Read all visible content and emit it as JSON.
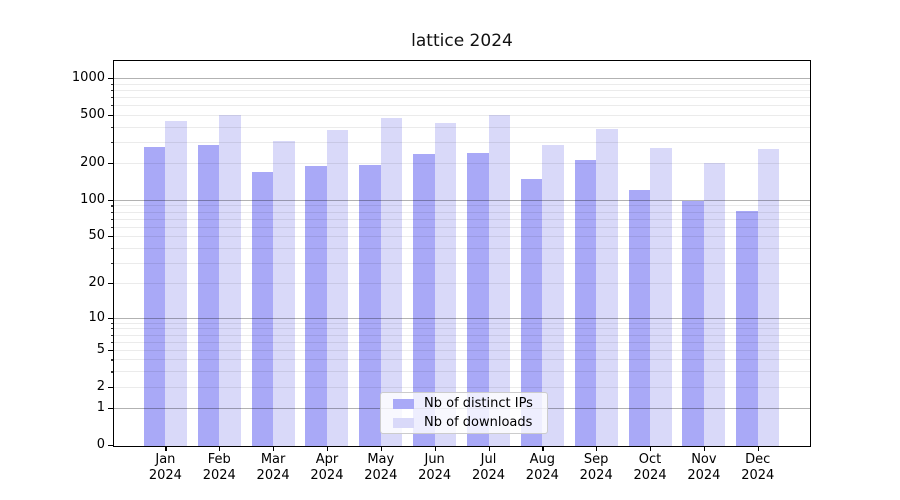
{
  "chart_data": {
    "type": "bar",
    "title": "lattice 2024",
    "x_categories": [
      "Jan",
      "Feb",
      "Mar",
      "Apr",
      "May",
      "Jun",
      "Jul",
      "Aug",
      "Sep",
      "Oct",
      "Nov",
      "Dec"
    ],
    "x_year": "2024",
    "series": [
      {
        "name": "Nb of distinct IPs",
        "color": "#a9a9f7",
        "values": [
          278,
          288,
          172,
          193,
          197,
          243,
          248,
          152,
          216,
          124,
          100,
          83
        ]
      },
      {
        "name": "Nb of downloads",
        "color": "#d9d9f9",
        "values": [
          450,
          505,
          311,
          380,
          480,
          437,
          510,
          288,
          390,
          272,
          203,
          266
        ]
      }
    ],
    "y_axis": {
      "scale": "log1p",
      "ticks": [
        0,
        1,
        2,
        5,
        10,
        20,
        50,
        100,
        200,
        500,
        1000
      ],
      "ylim": [
        0,
        1380
      ]
    },
    "grid": {
      "major_at": [
        1,
        10,
        100,
        1000
      ],
      "major_color": "rgba(0,0,0,0.30)",
      "minor_color": "rgba(0,0,0,0.08)"
    },
    "legend_position": "lower center"
  },
  "colors": {
    "background": "#ffffff",
    "bar_distinct_ips": "#a9a9f7",
    "bar_downloads": "#d9d9f9",
    "spine": "#000000",
    "text": "#000000"
  }
}
